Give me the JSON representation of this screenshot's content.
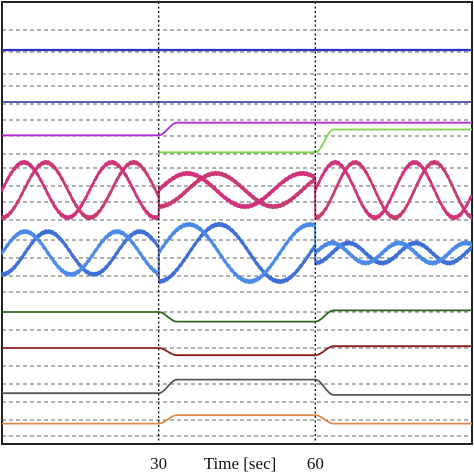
{
  "chart_data": {
    "type": "line",
    "title": "",
    "xlabel": "Time [sec]",
    "ylabel": "",
    "xlim": [
      0,
      90
    ],
    "xticks": [
      30,
      60
    ],
    "xtick_labels": [
      "30",
      "60"
    ],
    "vertical_markers": [
      30,
      60
    ],
    "grid": "horizontal dashed lines only",
    "legend": "none",
    "series": [
      {
        "color": "#2f35c2",
        "style": "flat",
        "band": 0,
        "level": 0.5,
        "amp": 0.05
      },
      {
        "color": "#2a2a95",
        "style": "flat",
        "band": 1,
        "level": 0.5,
        "amp": 0
      },
      {
        "color": "#b12fd6",
        "style": "step",
        "band": 2,
        "segments": [
          {
            "from": 0,
            "to": 30,
            "level": 0.55
          },
          {
            "from": 30,
            "to": 60,
            "level": 0.92
          },
          {
            "from": 60,
            "to": 90,
            "level": 0.92
          }
        ]
      },
      {
        "color": "#7cd74a",
        "style": "step",
        "band": 2,
        "segments": [
          {
            "from": 30,
            "to": 60,
            "level": 0.05
          },
          {
            "from": 60,
            "to": 90,
            "level": 0.72
          }
        ]
      },
      {
        "color": "#c93a73",
        "style": "beat",
        "band": 3,
        "phase": 0,
        "beat_periods": [
          8.4,
          11.0,
          7.6
        ],
        "envelope_amp": [
          1.0,
          0.6,
          1.0
        ]
      },
      {
        "color": "#d0337a",
        "style": "beat",
        "band": 3,
        "phase": 3.14,
        "beat_periods": [
          8.4,
          11.0,
          7.6
        ],
        "envelope_amp": [
          1.0,
          0.6,
          1.0
        ]
      },
      {
        "color": "#3e6fd6",
        "style": "beat",
        "band": 4,
        "phase": 0,
        "beat_periods": [
          8.8,
          11.6,
          6.4
        ],
        "envelope_amp": [
          0.75,
          1.0,
          0.35
        ]
      },
      {
        "color": "#4b8ae8",
        "style": "beat",
        "band": 4,
        "phase": 3.14,
        "beat_periods": [
          8.8,
          11.6,
          6.4
        ],
        "envelope_amp": [
          0.75,
          1.0,
          0.35
        ]
      },
      {
        "color": "#2a6a1c",
        "style": "step",
        "band": 5,
        "segments": [
          {
            "from": 0,
            "to": 30,
            "level": 0.5
          },
          {
            "from": 30,
            "to": 60,
            "level": 0.2
          },
          {
            "from": 60,
            "to": 90,
            "level": 0.55
          }
        ]
      },
      {
        "color": "#8a1d1d",
        "style": "step",
        "band": 6,
        "segments": [
          {
            "from": 0,
            "to": 30,
            "level": 0.5
          },
          {
            "from": 30,
            "to": 60,
            "level": 0.3
          },
          {
            "from": 60,
            "to": 90,
            "level": 0.55
          }
        ]
      },
      {
        "color": "#585858",
        "style": "step",
        "band": 7,
        "segments": [
          {
            "from": 0,
            "to": 30,
            "level": 0.2
          },
          {
            "from": 30,
            "to": 60,
            "level": 0.6
          },
          {
            "from": 60,
            "to": 90,
            "level": 0.15
          }
        ]
      },
      {
        "color": "#e08a4a",
        "style": "step",
        "band": 8,
        "segments": [
          {
            "from": 0,
            "to": 30,
            "level": 0.3
          },
          {
            "from": 30,
            "to": 60,
            "level": 0.6
          },
          {
            "from": 60,
            "to": 90,
            "level": 0.3
          }
        ]
      }
    ]
  }
}
